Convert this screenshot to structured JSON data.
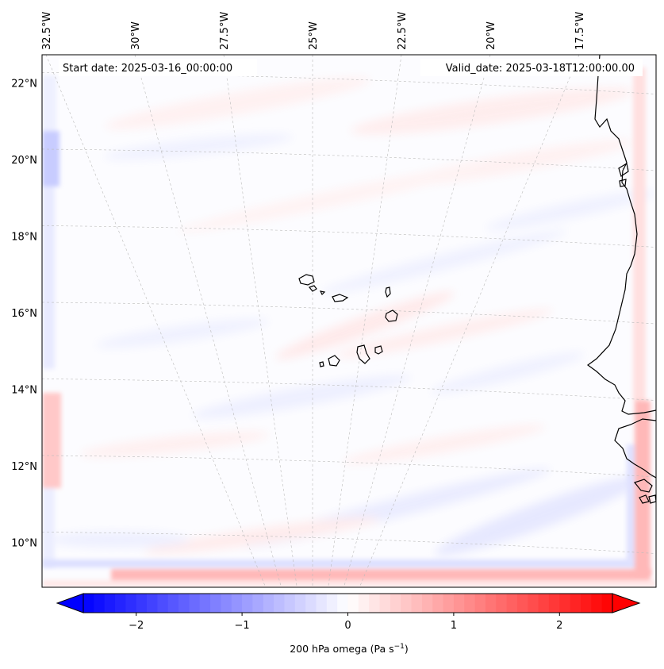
{
  "map": {
    "start_label": "Start date: 2025-03-16_00:00:00",
    "valid_label": "Valid_date: 2025-03-18T12:00:00.00",
    "lon_labels": [
      "32.5°W",
      "30°W",
      "27.5°W",
      "25°W",
      "22.5°W",
      "20°W",
      "17.5°W"
    ],
    "lat_labels": [
      "22°N",
      "20°N",
      "18°N",
      "16°N",
      "14°N",
      "12°N",
      "10°N"
    ],
    "lon_values": [
      -32.5,
      -30,
      -27.5,
      -25,
      -22.5,
      -20,
      -17.5
    ],
    "lat_values": [
      22,
      20,
      18,
      16,
      14,
      12,
      10
    ],
    "extent": {
      "lon_min": -33.5,
      "lon_max": -15.5,
      "lat_min": 8.8,
      "lat_max": 22.8
    }
  },
  "colorbar": {
    "label": "200 hPa omega (Pa s",
    "label_sup": "−1",
    "label_close": ")",
    "tick_labels": [
      "−2",
      "−1",
      "0",
      "1",
      "2"
    ],
    "tick_values": [
      -2,
      -1,
      0,
      1,
      2
    ],
    "range": [
      -2.5,
      2.5
    ],
    "extend": "both",
    "colormap": "bwr",
    "color_low": "#0000ff",
    "color_mid": "#ffffff",
    "color_high": "#ff0000"
  }
}
